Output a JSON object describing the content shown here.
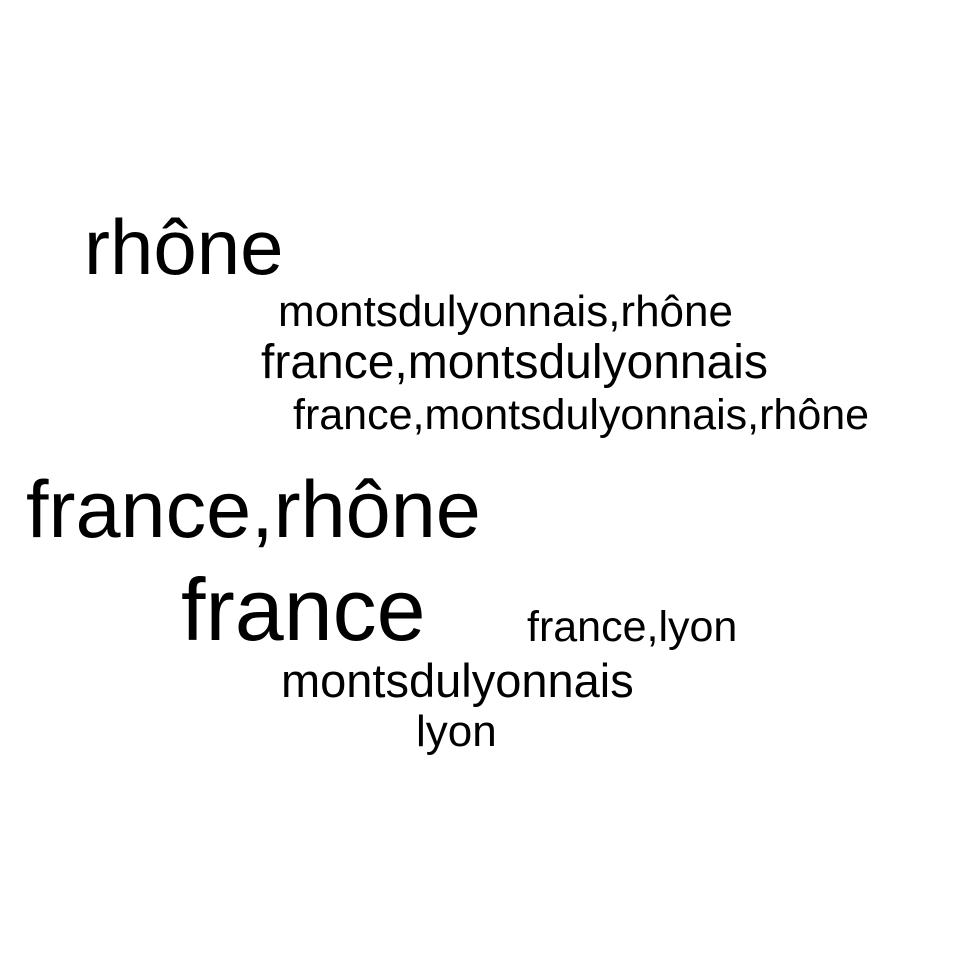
{
  "color": "#000000",
  "background": "#ffffff",
  "words": [
    "rhône",
    "montsdulyonnais,rhône",
    "france,montsdulyonnais",
    "france,montsdulyonnais,rhône",
    "france,rhône",
    "france",
    "france,lyon",
    "montsdulyonnais",
    "lyon"
  ]
}
